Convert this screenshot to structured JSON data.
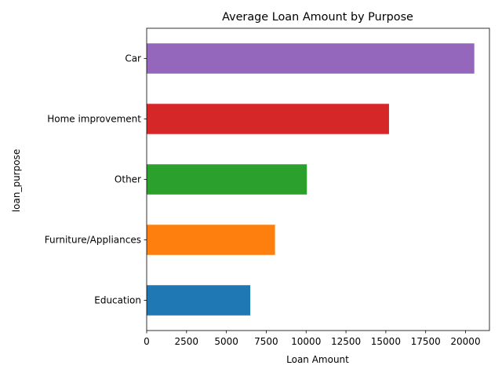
{
  "chart_data": {
    "type": "bar",
    "orientation": "horizontal",
    "title": "Average Loan Amount by Purpose",
    "xlabel": "Loan Amount",
    "ylabel": "loan_purpose",
    "categories": [
      "Education",
      "Furniture/Appliances",
      "Other",
      "Home improvement",
      "Car"
    ],
    "values": [
      6500,
      8050,
      10050,
      15200,
      20550
    ],
    "colors": [
      "#1f77b4",
      "#ff7f0e",
      "#2ca02c",
      "#d62728",
      "#9467bd"
    ],
    "xlim": [
      0,
      21500
    ],
    "xticks": [
      0,
      2500,
      5000,
      7500,
      10000,
      12500,
      15000,
      17500,
      20000
    ],
    "grid": false,
    "legend": "none"
  }
}
